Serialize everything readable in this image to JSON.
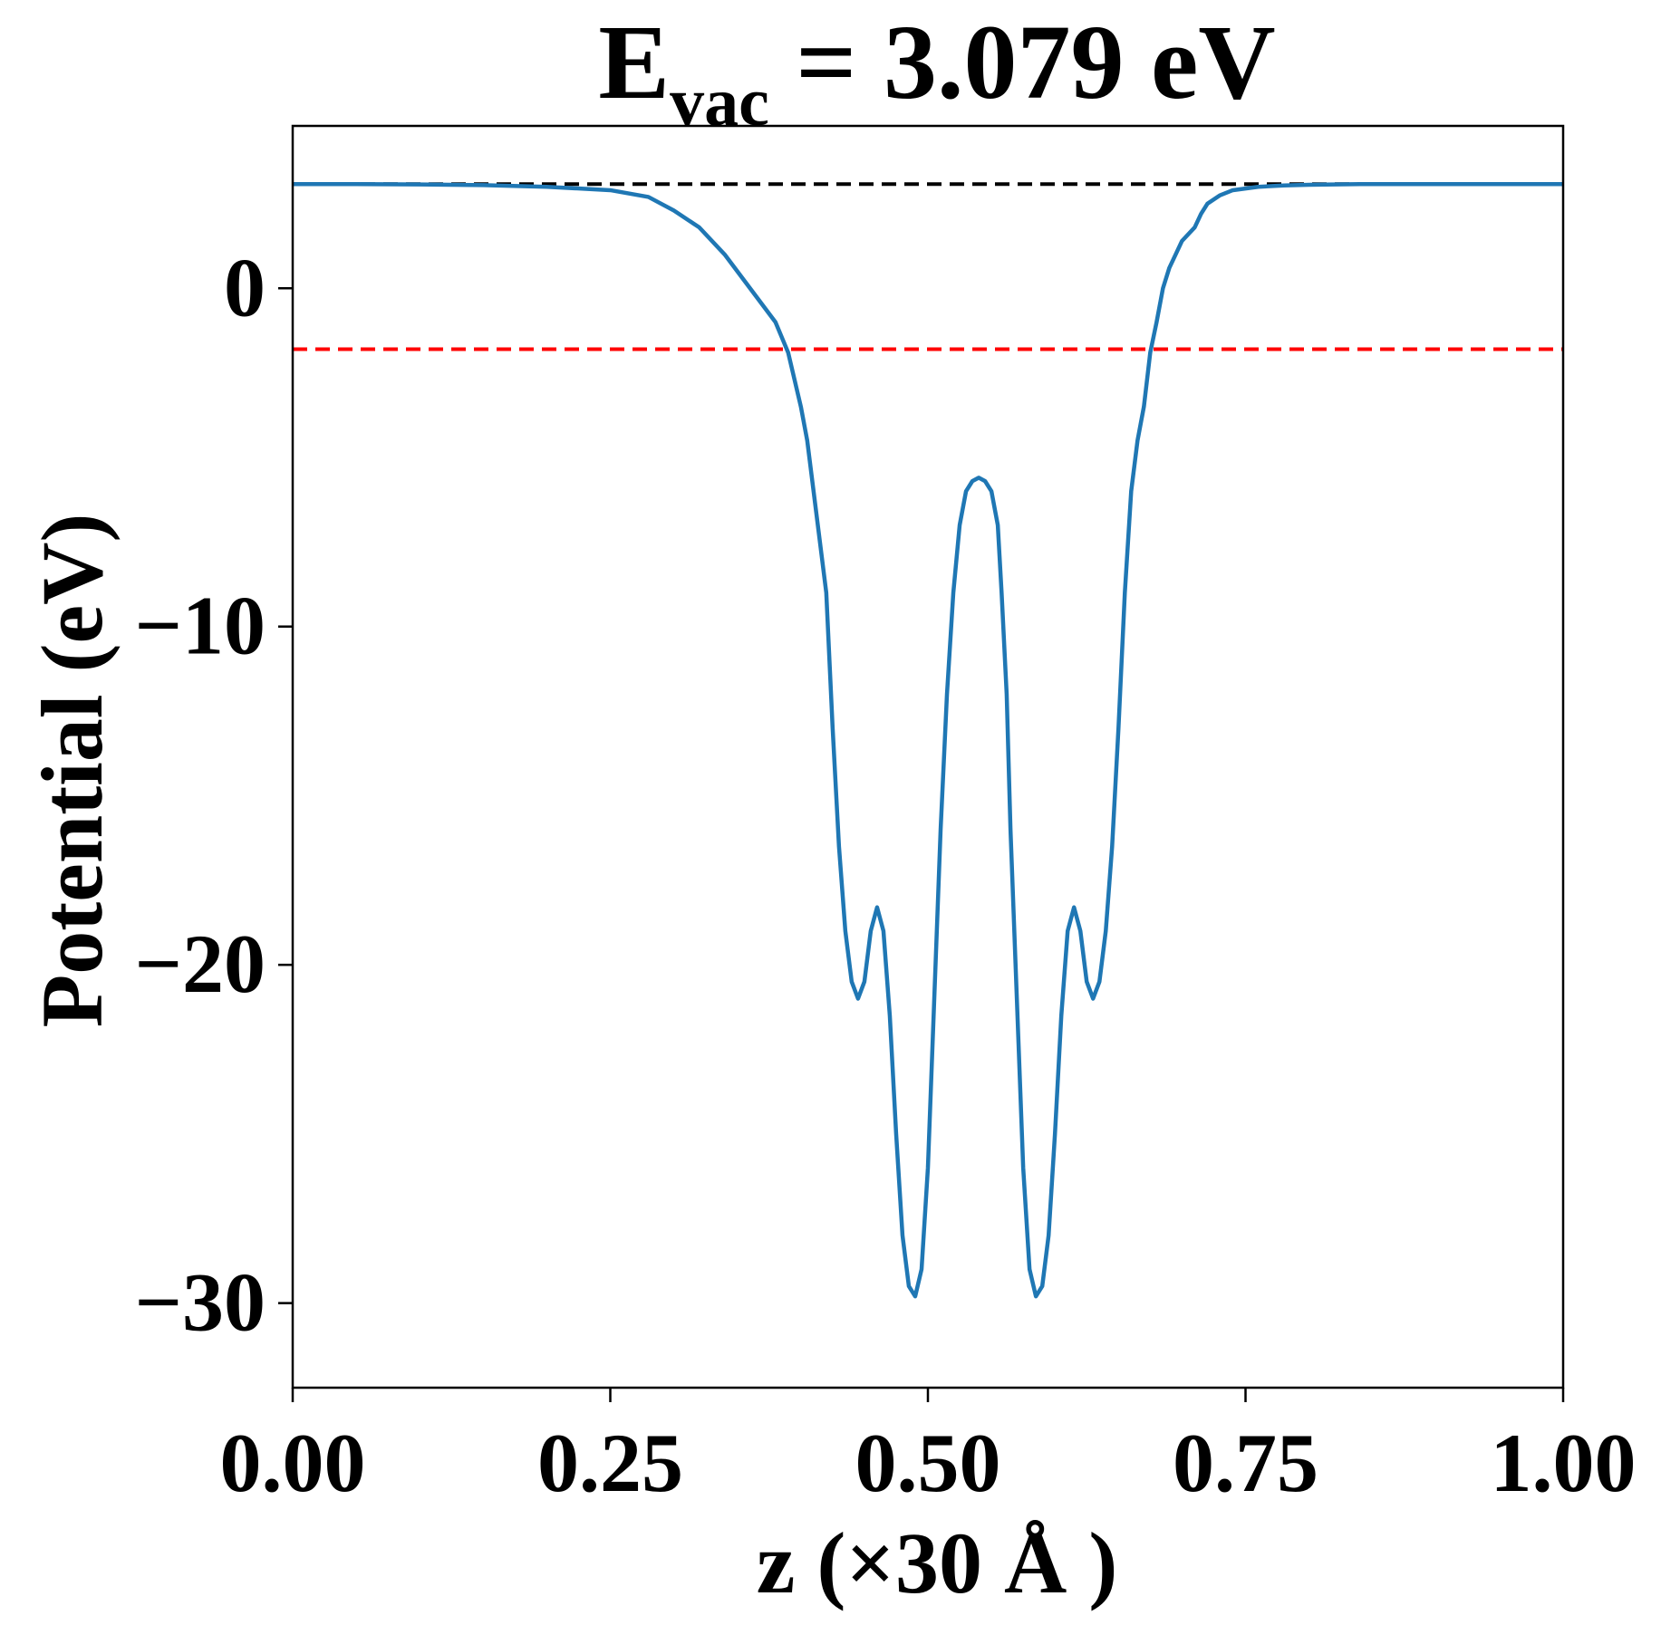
{
  "chart_data": {
    "type": "line",
    "title": {
      "main": "E",
      "subscript": "vac",
      "rest": " = 3.079 eV"
    },
    "xlabel": "z (×30 Å )",
    "ylabel": "Potential (eV)",
    "xlim": [
      0.0,
      1.0
    ],
    "ylim": [
      -32.5,
      4.8
    ],
    "x_ticks": [
      0.0,
      0.25,
      0.5,
      0.75,
      1.0
    ],
    "x_tick_labels": [
      "0.00",
      "0.25",
      "0.50",
      "0.75",
      "1.00"
    ],
    "y_ticks": [
      0,
      -10,
      -20,
      -30
    ],
    "y_tick_labels": [
      "0",
      "−10",
      "−20",
      "−30"
    ],
    "grid": false,
    "legend": "none",
    "reference_lines": [
      {
        "y": 3.079,
        "style": "dashed",
        "color": "#000000"
      },
      {
        "y": -1.8,
        "style": "dashed",
        "color": "#ff0000"
      }
    ],
    "series": [
      {
        "color": "#1f77b4",
        "x": [
          0.0,
          0.05,
          0.1,
          0.15,
          0.2,
          0.25,
          0.28,
          0.3,
          0.32,
          0.34,
          0.36,
          0.38,
          0.39,
          0.4,
          0.405,
          0.41,
          0.42,
          0.425,
          0.43,
          0.435,
          0.44,
          0.445,
          0.45,
          0.455,
          0.46,
          0.465,
          0.47,
          0.475,
          0.48,
          0.485,
          0.49,
          0.495,
          0.5,
          0.505,
          0.51,
          0.515,
          0.52,
          0.525,
          0.53,
          0.535,
          0.54,
          0.545,
          0.55,
          0.555,
          0.558,
          0.562,
          0.565,
          0.57,
          0.575,
          0.58,
          0.585,
          0.59,
          0.595,
          0.6,
          0.605,
          0.61,
          0.615,
          0.62,
          0.625,
          0.63,
          0.635,
          0.64,
          0.645,
          0.65,
          0.655,
          0.66,
          0.665,
          0.67,
          0.675,
          0.68,
          0.685,
          0.69,
          0.695,
          0.7,
          0.71,
          0.715,
          0.72,
          0.73,
          0.74,
          0.76,
          0.78,
          0.8,
          0.82,
          0.84,
          0.86,
          0.9,
          0.95,
          1.0
        ],
        "y": [
          3.08,
          3.08,
          3.07,
          3.05,
          3.0,
          2.9,
          2.7,
          2.3,
          1.8,
          1.0,
          0.0,
          -1.0,
          -1.9,
          -3.5,
          -4.5,
          -6.0,
          -9.0,
          -13.0,
          -16.5,
          -19.0,
          -20.5,
          -21.0,
          -20.5,
          -19.0,
          -18.3,
          -19.0,
          -21.5,
          -25.0,
          -28.0,
          -29.5,
          -29.8,
          -29.0,
          -26.0,
          -21.0,
          -16.0,
          -12.0,
          -9.0,
          -7.0,
          -6.0,
          -5.7,
          -5.6,
          -5.7,
          -6.0,
          -7.0,
          -9.0,
          -12.0,
          -16.0,
          -21.0,
          -26.0,
          -29.0,
          -29.8,
          -29.5,
          -28.0,
          -25.0,
          -21.5,
          -19.0,
          -18.3,
          -19.0,
          -20.5,
          -21.0,
          -20.5,
          -19.0,
          -16.5,
          -13.0,
          -9.0,
          -6.0,
          -4.5,
          -3.5,
          -1.9,
          -1.0,
          0.0,
          0.6,
          1.0,
          1.4,
          1.8,
          2.2,
          2.5,
          2.75,
          2.9,
          3.0,
          3.04,
          3.06,
          3.07,
          3.08,
          3.08,
          3.08,
          3.08,
          3.08
        ]
      }
    ]
  }
}
